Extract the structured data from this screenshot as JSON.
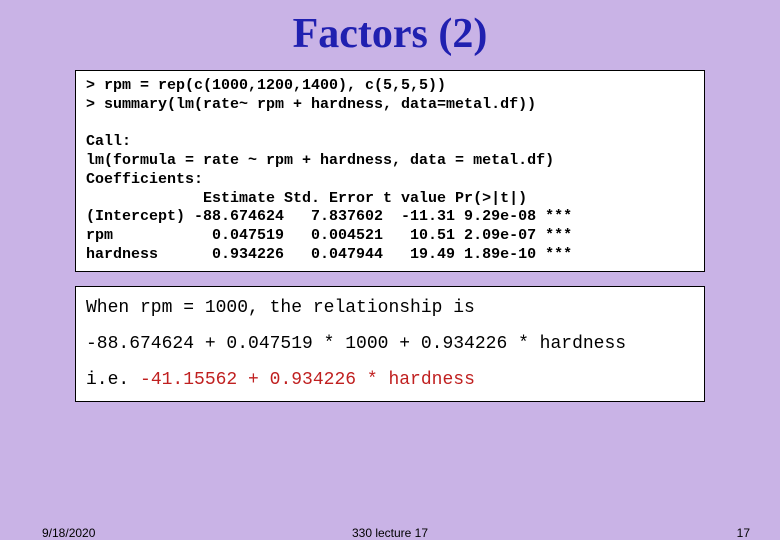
{
  "title": "Factors (2)",
  "code": {
    "line1": "> rpm = rep(c(1000,1200,1400), c(5,5,5))",
    "line2": "> summary(lm(rate~ rpm + hardness, data=metal.df))",
    "blank": "",
    "call_label": "Call:",
    "call_formula": "lm(formula = rate ~ rpm + hardness, data = metal.df)",
    "coef_label": "Coefficients:",
    "header": "             Estimate Std. Error t value Pr(>|t|)",
    "row_int": "(Intercept) -88.674624   7.837602  -11.31 9.29e-08 ***",
    "row_rpm": "rpm           0.047519   0.004521   10.51 2.09e-07 ***",
    "row_hard": "hardness      0.934226   0.047944   19.49 1.89e-10 ***"
  },
  "explain": {
    "p1": "When rpm = 1000, the relationship is",
    "p2": "-88.674624 + 0.047519 * 1000  + 0.934226 * hardness",
    "p3a": "i.e. ",
    "p3b": "-41.15562 + 0.934226 * hardness"
  },
  "footer": {
    "date": "9/18/2020",
    "center": "330 lecture 17",
    "page": "17"
  },
  "colors": {
    "background": "#c9b3e6",
    "title": "#2020b0",
    "red": "#c02020",
    "box_bg": "#ffffff",
    "text": "#000000"
  },
  "typography": {
    "title_font": "Comic Sans MS",
    "mono_font": "Courier New",
    "title_size_pt": 42,
    "code_size_pt": 15,
    "explain_size_pt": 18,
    "footer_size_pt": 12
  }
}
